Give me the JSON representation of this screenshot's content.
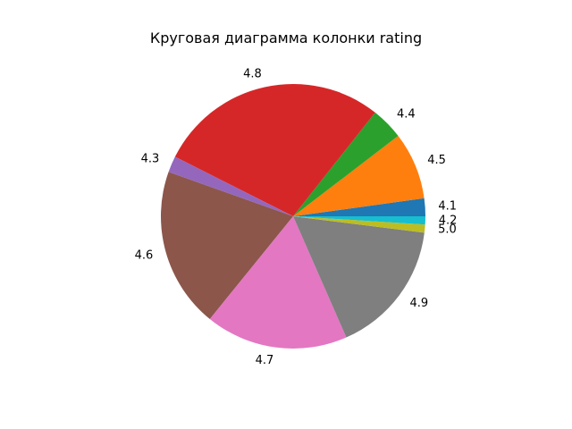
{
  "chart_data": {
    "type": "pie",
    "title": "Круговая диаграмма колонки rating",
    "start_angle_deg": 0,
    "direction": "counterclockwise",
    "slices": [
      {
        "label": "4.1",
        "value": 2.2,
        "color": "#1f77b4"
      },
      {
        "label": "4.5",
        "value": 8.3,
        "color": "#ff7f0e"
      },
      {
        "label": "4.4",
        "value": 4.0,
        "color": "#2ca02c"
      },
      {
        "label": "4.8",
        "value": 28.5,
        "color": "#d62728"
      },
      {
        "label": "4.3",
        "value": 2.0,
        "color": "#9467bd"
      },
      {
        "label": "4.6",
        "value": 19.8,
        "color": "#8c564b"
      },
      {
        "label": "4.7",
        "value": 17.6,
        "color": "#e377c2"
      },
      {
        "label": "4.9",
        "value": 16.6,
        "color": "#7f7f7f"
      },
      {
        "label": "5.0",
        "value": 1.0,
        "color": "#bcbd22"
      },
      {
        "label": "4.2",
        "value": 1.0,
        "color": "#17becf"
      }
    ]
  }
}
